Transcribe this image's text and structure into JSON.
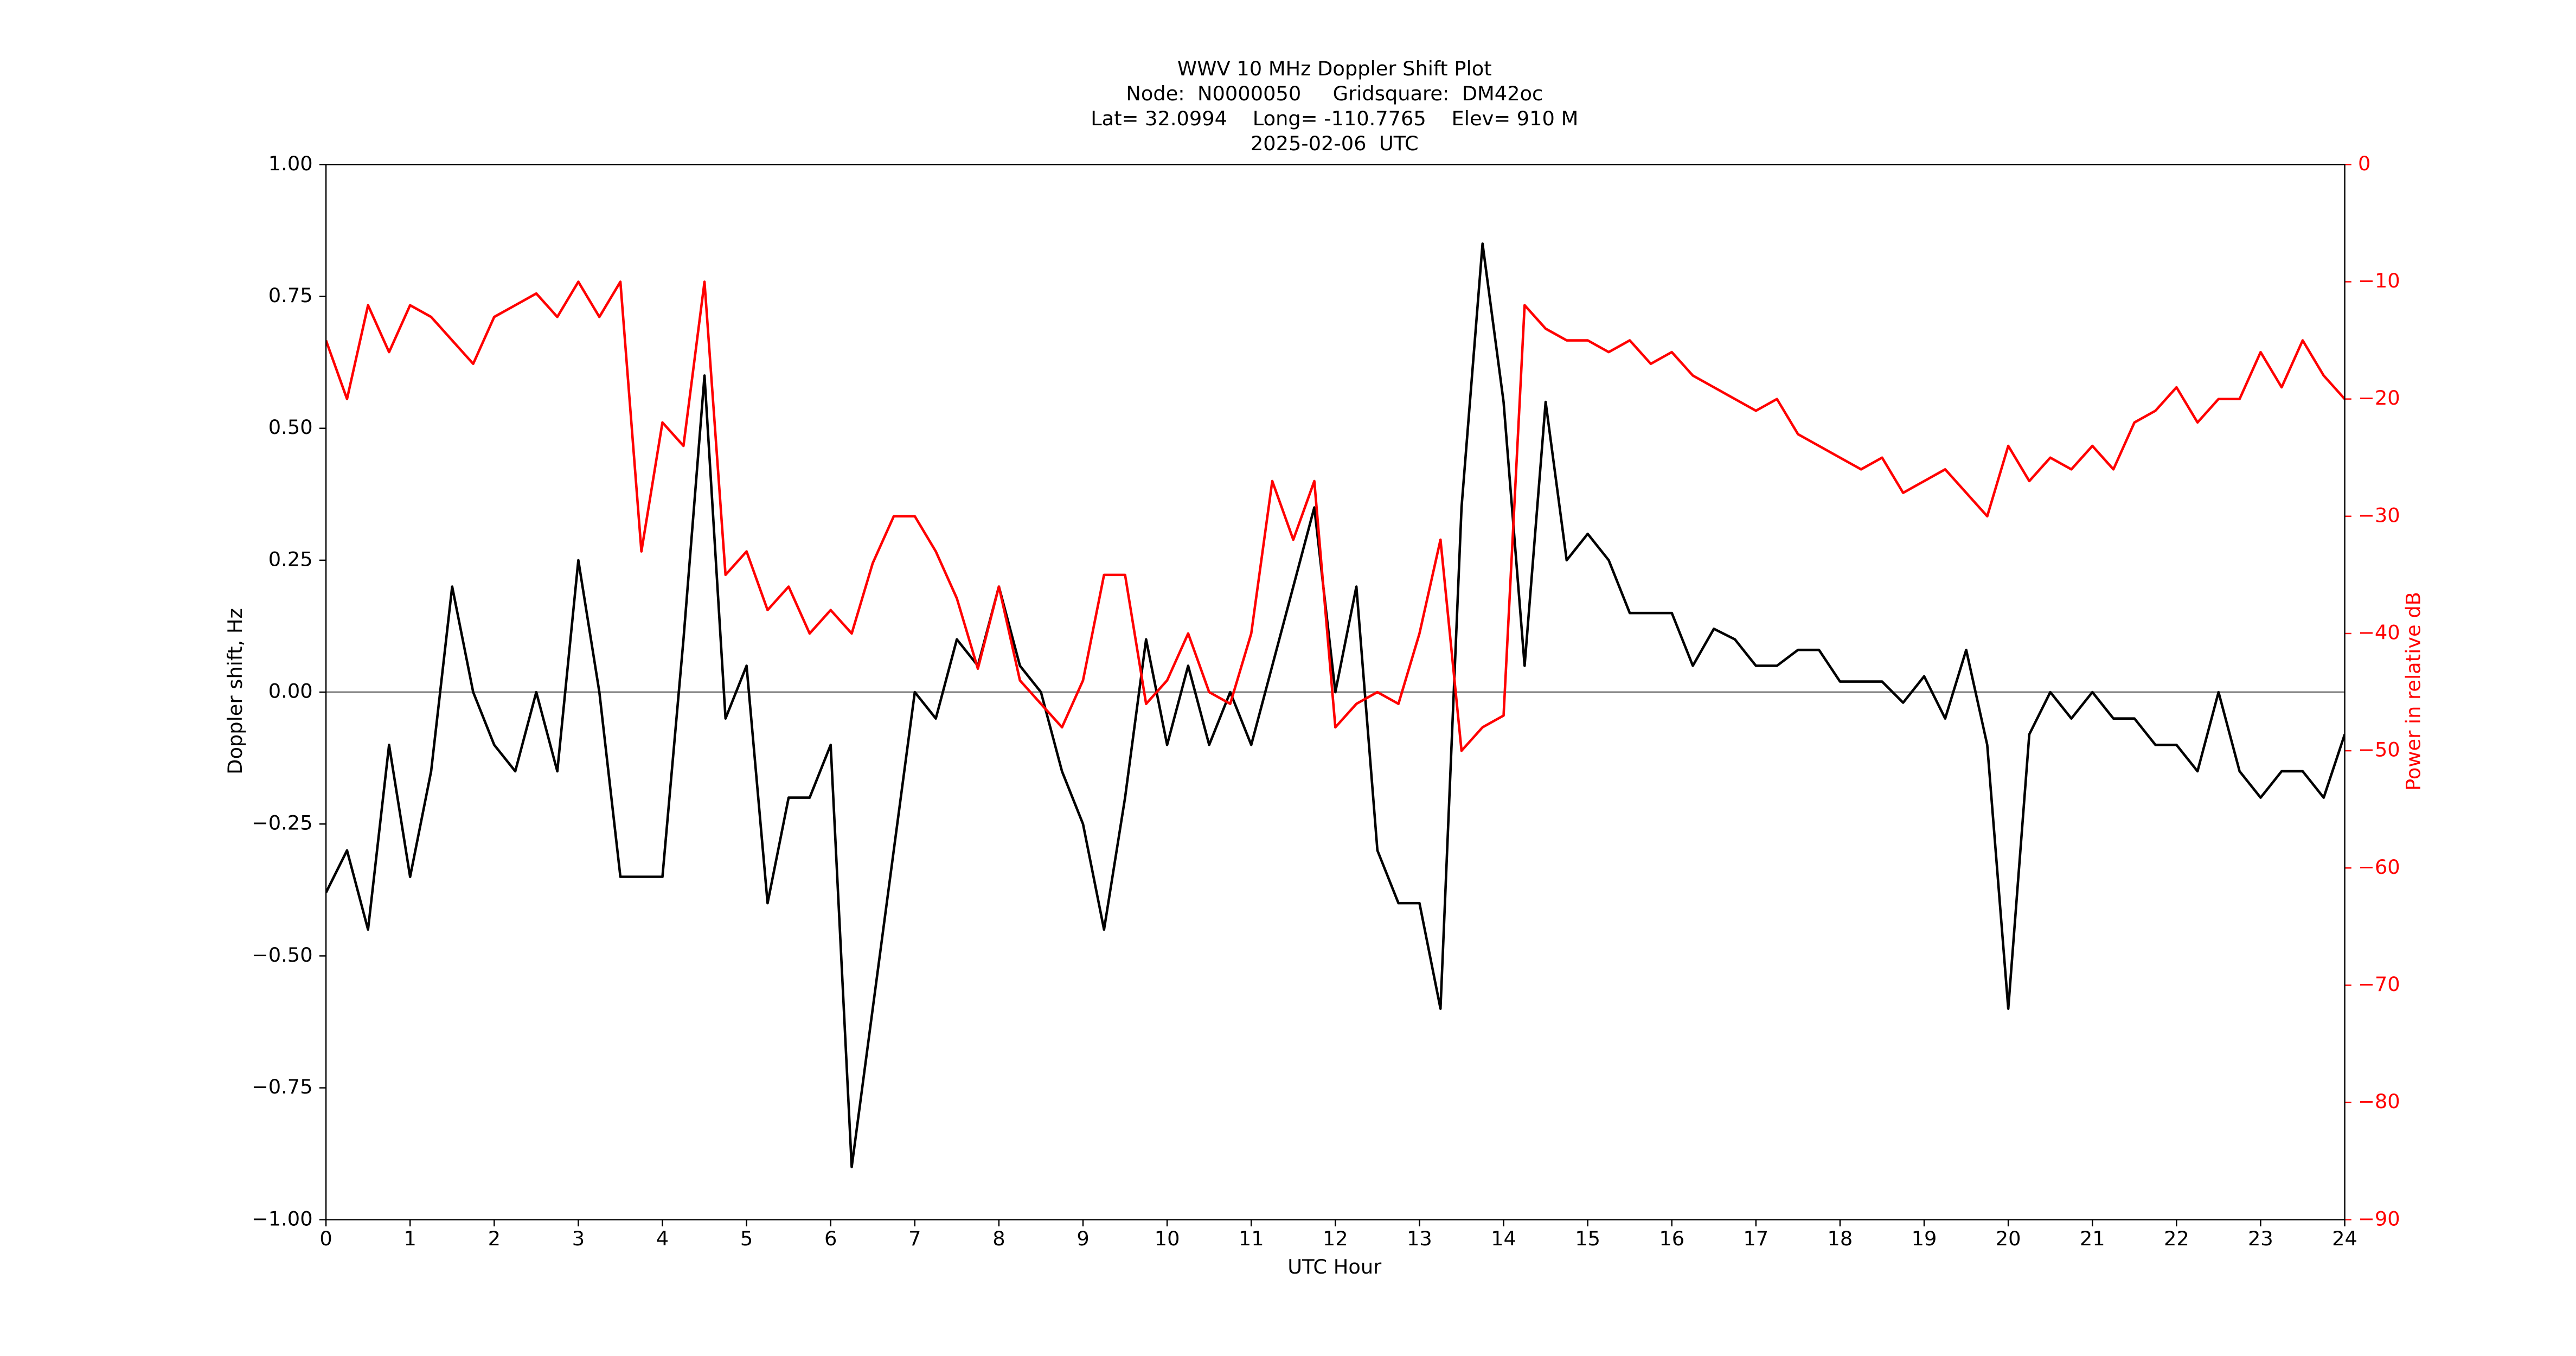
{
  "chart_data": {
    "type": "line",
    "title": [
      "WWV 10 MHz Doppler Shift Plot",
      "Node:  N0000050     Gridsquare:  DM42oc",
      "Lat= 32.0994    Long= -110.7765    Elev= 910 M",
      "2025-02-06  UTC"
    ],
    "xlabel": "UTC Hour",
    "ylabel": "Doppler shift, Hz",
    "y2label": "Power in relative dB",
    "x": [
      0,
      0.25,
      0.5,
      0.75,
      1,
      1.25,
      1.5,
      1.75,
      2,
      2.25,
      2.5,
      2.75,
      3,
      3.25,
      3.5,
      3.75,
      4,
      4.25,
      4.5,
      4.75,
      5,
      5.25,
      5.5,
      5.75,
      6,
      6.25,
      6.5,
      6.75,
      7,
      7.25,
      7.5,
      7.75,
      8,
      8.25,
      8.5,
      8.75,
      9,
      9.25,
      9.5,
      9.75,
      10,
      10.25,
      10.5,
      10.75,
      11,
      11.25,
      11.5,
      11.75,
      12,
      12.25,
      12.5,
      12.75,
      13,
      13.25,
      13.5,
      13.75,
      14,
      14.25,
      14.5,
      14.75,
      15,
      15.25,
      15.5,
      15.75,
      16,
      16.25,
      16.5,
      16.75,
      17,
      17.25,
      17.5,
      17.75,
      18,
      18.25,
      18.5,
      18.75,
      19,
      19.25,
      19.5,
      19.75,
      20,
      20.25,
      20.5,
      20.75,
      21,
      21.25,
      21.5,
      21.75,
      22,
      22.25,
      22.5,
      22.75,
      23,
      23.25,
      23.5,
      23.75,
      24
    ],
    "series": [
      {
        "name": "Doppler shift",
        "color": "#000000",
        "axis": "y",
        "values": [
          -0.38,
          -0.3,
          -0.45,
          -0.1,
          -0.35,
          -0.15,
          0.2,
          0.0,
          -0.1,
          -0.15,
          0.0,
          -0.15,
          0.25,
          0.0,
          -0.35,
          -0.35,
          -0.35,
          0.1,
          0.6,
          -0.05,
          0.05,
          -0.4,
          -0.2,
          -0.2,
          -0.1,
          -0.9,
          -0.6,
          -0.3,
          0.0,
          -0.05,
          0.1,
          0.05,
          0.2,
          0.05,
          0.0,
          -0.15,
          -0.25,
          -0.45,
          -0.2,
          0.1,
          -0.1,
          0.05,
          -0.1,
          0.0,
          -0.1,
          0.05,
          0.2,
          0.35,
          0.0,
          0.2,
          -0.3,
          -0.4,
          -0.4,
          -0.6,
          0.35,
          0.85,
          0.55,
          0.05,
          0.55,
          0.25,
          0.3,
          0.25,
          0.15,
          0.15,
          0.15,
          0.05,
          0.12,
          0.1,
          0.05,
          0.05,
          0.08,
          0.08,
          0.02,
          0.02,
          0.02,
          -0.02,
          0.03,
          -0.05,
          0.08,
          -0.1,
          -0.6,
          -0.08,
          0.0,
          -0.05,
          0.0,
          -0.05,
          -0.05,
          -0.1,
          -0.1,
          -0.15,
          0.0,
          -0.15,
          -0.2,
          -0.15,
          -0.15,
          -0.2,
          -0.08
        ]
      },
      {
        "name": "Power",
        "color": "#ff0000",
        "axis": "y2",
        "values": [
          -15,
          -20,
          -12,
          -16,
          -12,
          -13,
          -15,
          -17,
          -13,
          -12,
          -11,
          -13,
          -10,
          -13,
          -10,
          -33,
          -22,
          -24,
          -10,
          -35,
          -33,
          -38,
          -36,
          -40,
          -38,
          -40,
          -34,
          -30,
          -30,
          -33,
          -37,
          -43,
          -36,
          -44,
          -46,
          -48,
          -44,
          -35,
          -35,
          -46,
          -44,
          -40,
          -45,
          -46,
          -40,
          -27,
          -32,
          -27,
          -48,
          -46,
          -45,
          -46,
          -40,
          -32,
          -50,
          -48,
          -47,
          -12,
          -14,
          -15,
          -15,
          -16,
          -15,
          -17,
          -16,
          -18,
          -19,
          -20,
          -21,
          -20,
          -23,
          -24,
          -25,
          -26,
          -25,
          -28,
          -27,
          -26,
          -28,
          -30,
          -24,
          -27,
          -25,
          -26,
          -24,
          -26,
          -22,
          -21,
          -19,
          -22,
          -20,
          -20,
          -16,
          -19,
          -15,
          -18,
          -20
        ]
      }
    ],
    "xlim": [
      0,
      24
    ],
    "xticks": [
      0,
      1,
      2,
      3,
      4,
      5,
      6,
      7,
      8,
      9,
      10,
      11,
      12,
      13,
      14,
      15,
      16,
      17,
      18,
      19,
      20,
      21,
      22,
      23,
      24
    ],
    "ylim": [
      -1,
      1
    ],
    "yticks": [
      {
        "value": -1,
        "label": "−1.00"
      },
      {
        "value": -0.75,
        "label": "−0.75"
      },
      {
        "value": -0.5,
        "label": "−0.50"
      },
      {
        "value": -0.25,
        "label": "−0.25"
      },
      {
        "value": 0,
        "label": "0.00"
      },
      {
        "value": 0.25,
        "label": "0.25"
      },
      {
        "value": 0.5,
        "label": "0.50"
      },
      {
        "value": 0.75,
        "label": "0.75"
      },
      {
        "value": 1,
        "label": "1.00"
      }
    ],
    "y2lim": [
      -90,
      0
    ],
    "y2ticks": [
      {
        "value": -90,
        "label": "−90"
      },
      {
        "value": -80,
        "label": "−80"
      },
      {
        "value": -70,
        "label": "−70"
      },
      {
        "value": -60,
        "label": "−60"
      },
      {
        "value": -50,
        "label": "−50"
      },
      {
        "value": -40,
        "label": "−40"
      },
      {
        "value": -30,
        "label": "−30"
      },
      {
        "value": -20,
        "label": "−20"
      },
      {
        "value": -10,
        "label": "−10"
      },
      0
    ],
    "y2color": "#ff0000",
    "hline": 0,
    "hline_color": "#808080",
    "grid": false
  }
}
